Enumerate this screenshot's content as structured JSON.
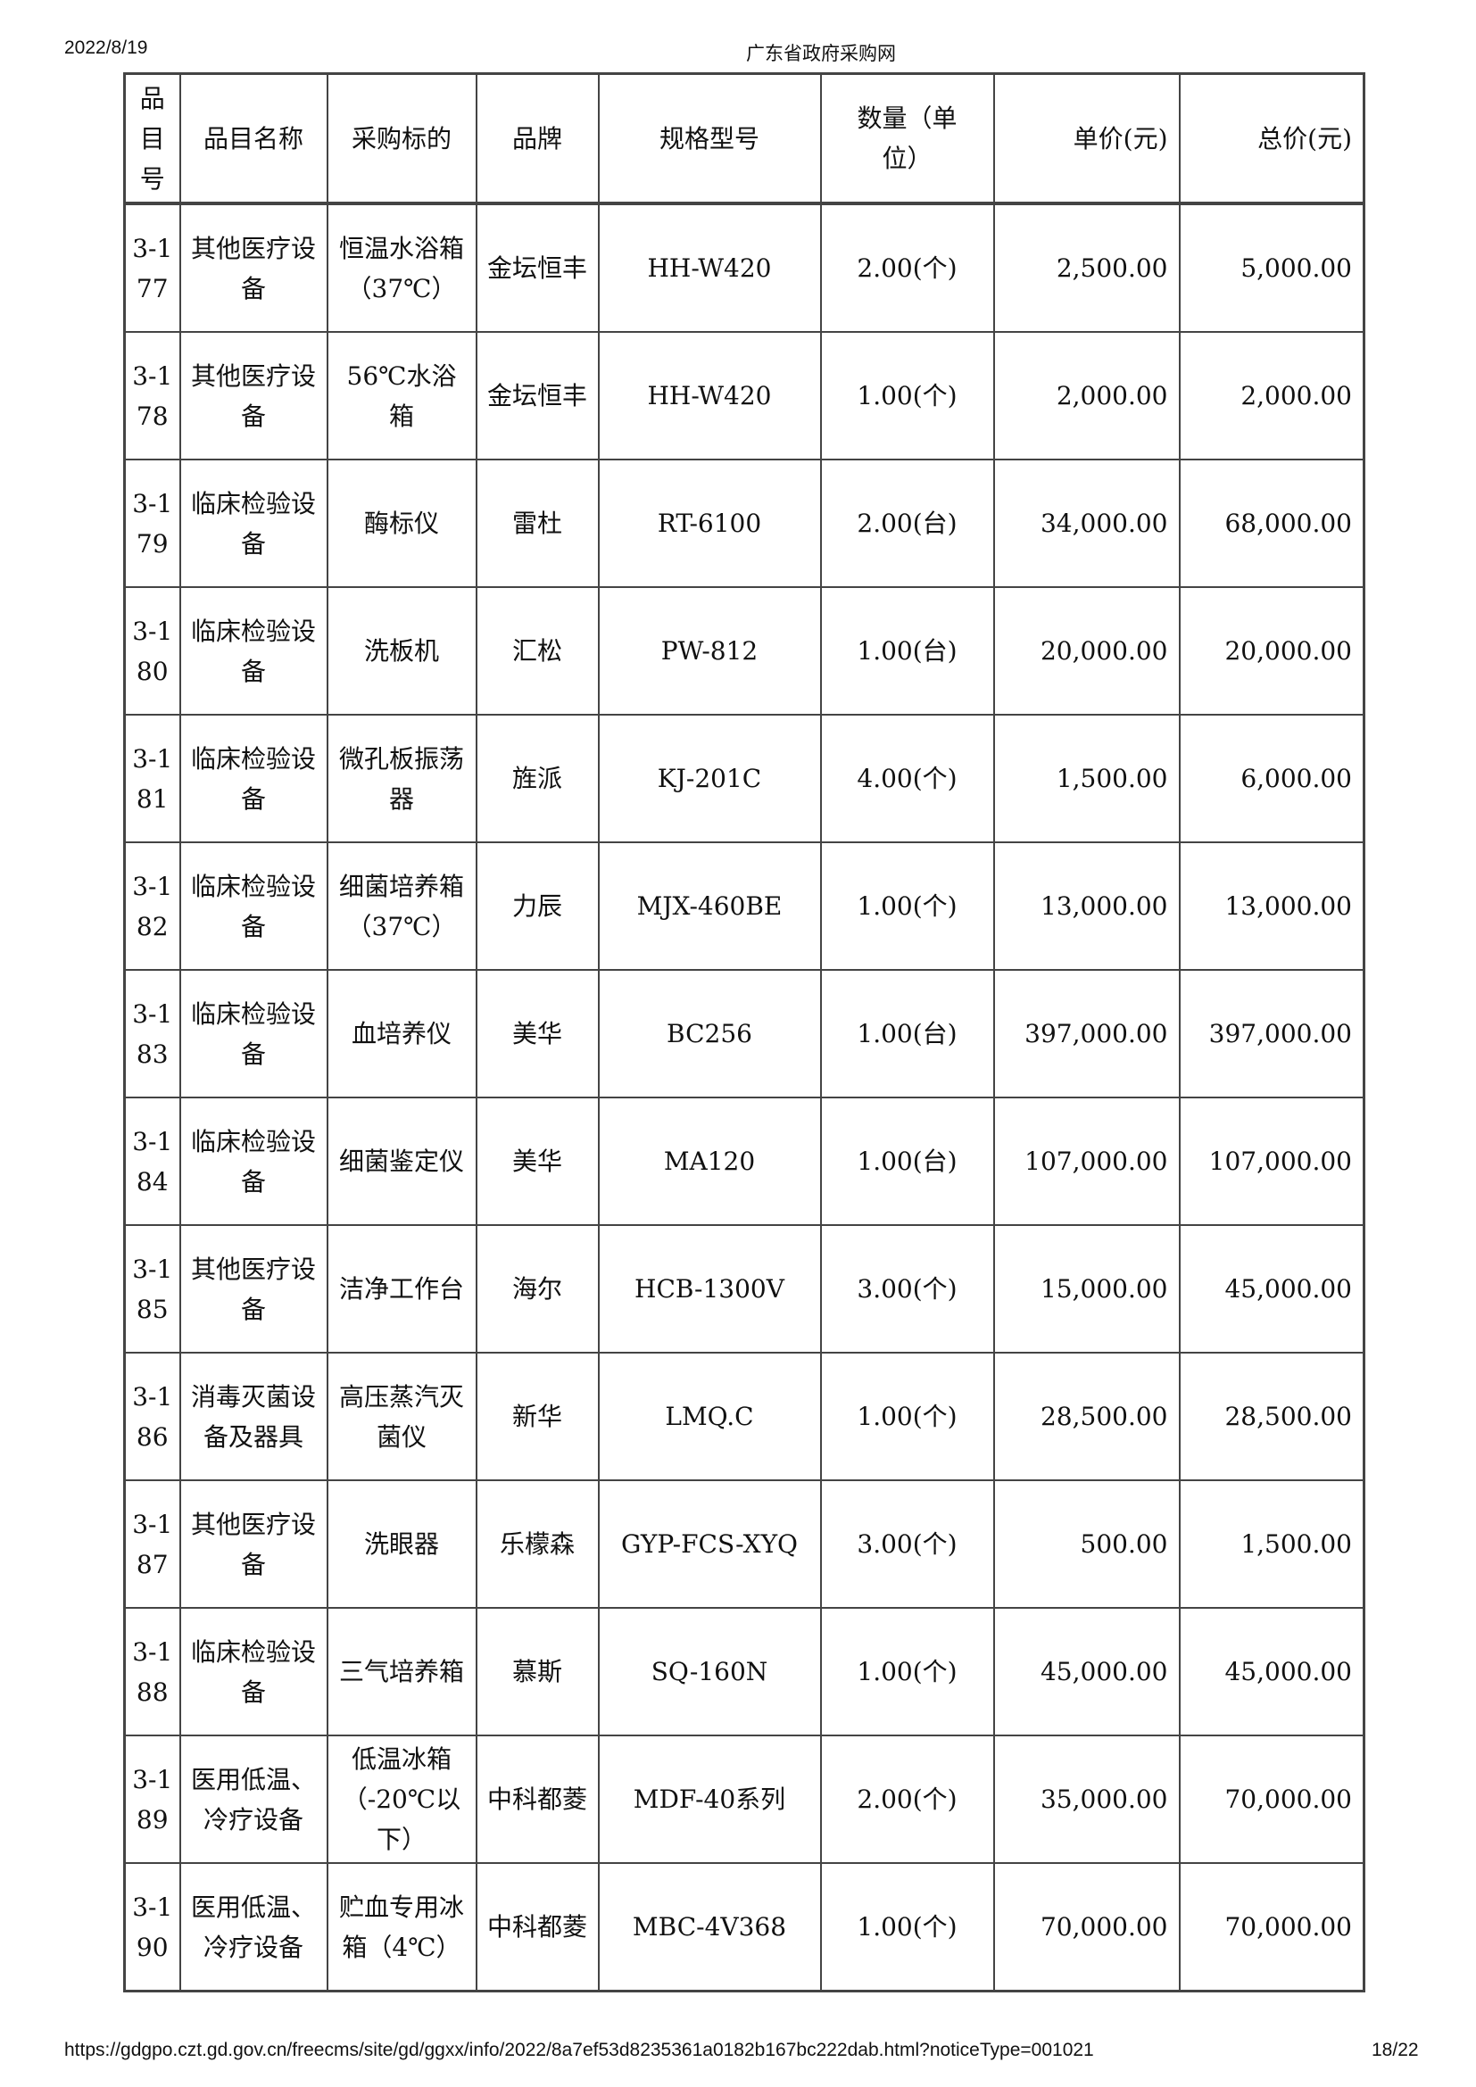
{
  "header": {
    "date": "2022/8/19",
    "site": "广东省政府采购网"
  },
  "table": {
    "columns": [
      "品目号",
      "品目名称",
      "采购标的",
      "品牌",
      "规格型号",
      "数量（单位）",
      "单价(元)",
      "总价(元)"
    ],
    "rows": [
      [
        "3-177",
        "其他医疗设备",
        "恒温水浴箱（37℃）",
        "金坛恒丰",
        "HH-W420",
        "2.00(个)",
        "2,500.00",
        "5,000.00"
      ],
      [
        "3-178",
        "其他医疗设备",
        "56℃水浴箱",
        "金坛恒丰",
        "HH-W420",
        "1.00(个)",
        "2,000.00",
        "2,000.00"
      ],
      [
        "3-179",
        "临床检验设备",
        "酶标仪",
        "雷杜",
        "RT-6100",
        "2.00(台)",
        "34,000.00",
        "68,000.00"
      ],
      [
        "3-180",
        "临床检验设备",
        "洗板机",
        "汇松",
        "PW-812",
        "1.00(台)",
        "20,000.00",
        "20,000.00"
      ],
      [
        "3-181",
        "临床检验设备",
        "微孔板振荡器",
        "旌派",
        "KJ-201C",
        "4.00(个)",
        "1,500.00",
        "6,000.00"
      ],
      [
        "3-182",
        "临床检验设备",
        "细菌培养箱（37℃）",
        "力辰",
        "MJX-460BE",
        "1.00(个)",
        "13,000.00",
        "13,000.00"
      ],
      [
        "3-183",
        "临床检验设备",
        "血培养仪",
        "美华",
        "BC256",
        "1.00(台)",
        "397,000.00",
        "397,000.00"
      ],
      [
        "3-184",
        "临床检验设备",
        "细菌鉴定仪",
        "美华",
        "MA120",
        "1.00(台)",
        "107,000.00",
        "107,000.00"
      ],
      [
        "3-185",
        "其他医疗设备",
        "洁净工作台",
        "海尔",
        "HCB-1300V",
        "3.00(个)",
        "15,000.00",
        "45,000.00"
      ],
      [
        "3-186",
        "消毒灭菌设备及器具",
        "高压蒸汽灭菌仪",
        "新华",
        "LMQ.C",
        "1.00(个)",
        "28,500.00",
        "28,500.00"
      ],
      [
        "3-187",
        "其他医疗设备",
        "洗眼器",
        "乐檬森",
        "GYP-FCS-XYQ",
        "3.00(个)",
        "500.00",
        "1,500.00"
      ],
      [
        "3-188",
        "临床检验设备",
        "三气培养箱",
        "慕斯",
        "SQ-160N",
        "1.00(个)",
        "45,000.00",
        "45,000.00"
      ],
      [
        "3-189",
        "医用低温、冷疗设备",
        "低温冰箱（-20℃以下）",
        "中科都菱",
        "MDF-40系列",
        "2.00(个)",
        "35,000.00",
        "70,000.00"
      ],
      [
        "3-190",
        "医用低温、冷疗设备",
        "贮血专用冰箱（4℃）",
        "中科都菱",
        "MBC-4V368",
        "1.00(个)",
        "70,000.00",
        "70,000.00"
      ]
    ]
  },
  "footer": {
    "url": "https://gdgpo.czt.gd.gov.cn/freecms/site/gd/ggxx/info/2022/8a7ef53d8235361a0182b167bc222dab.html?noticeType=001021",
    "page": "18/22"
  }
}
